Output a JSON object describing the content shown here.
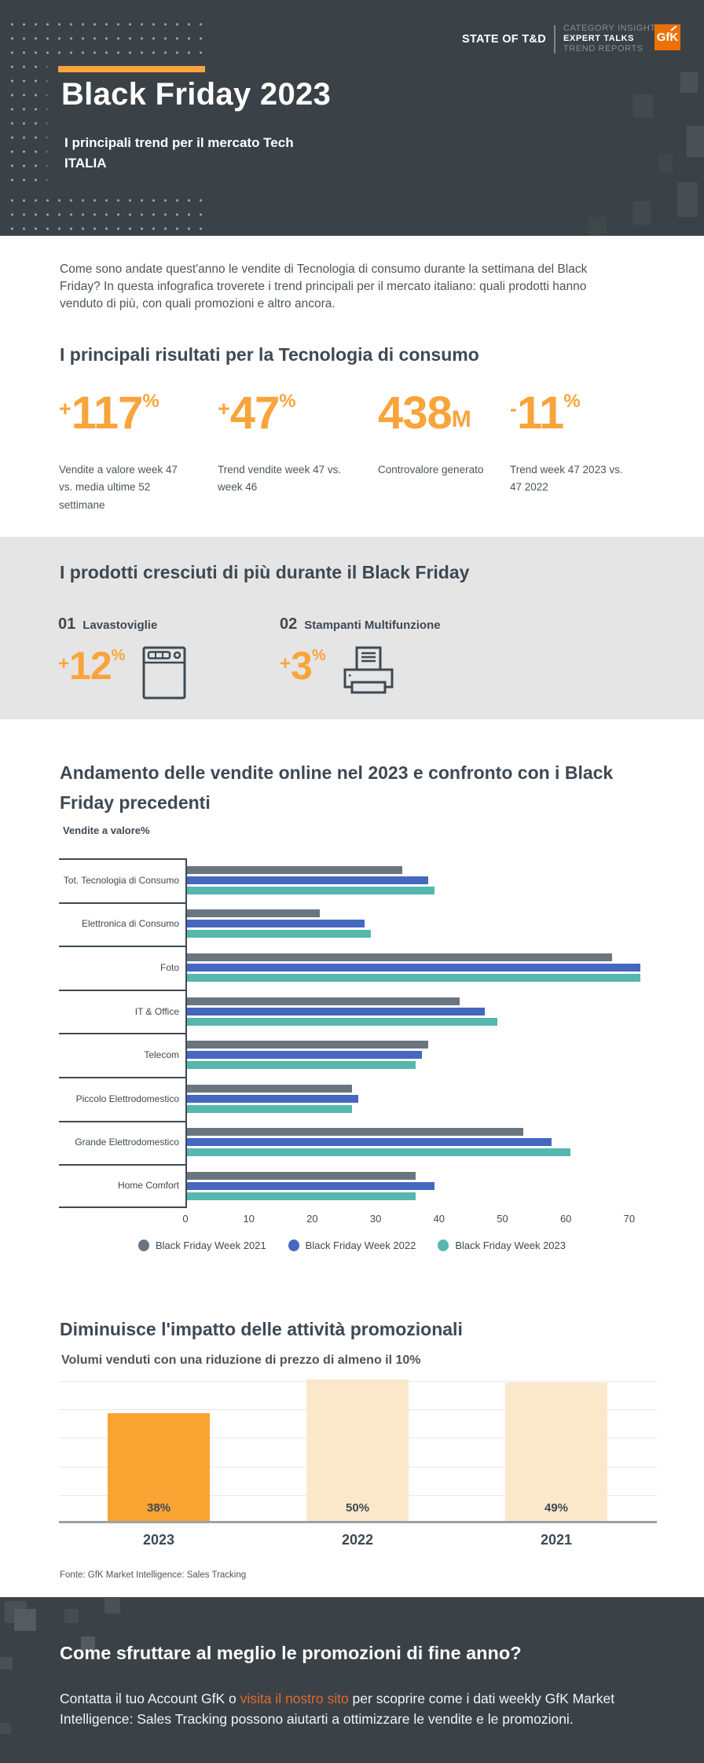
{
  "colors": {
    "accent_orange": "#F9A43B",
    "logo_orange": "#ED7005",
    "link_orange": "#E0692E",
    "dark_background": "#3B4247",
    "heading": "#3E4953",
    "gray_band": "#E5E5E5"
  },
  "header": {
    "brand_left": "STATE OF T&D",
    "brand_lines": [
      "CATEGORY INSIGHTS",
      "EXPERT TALKS",
      "TREND REPORTS"
    ],
    "logo_text": "GfK",
    "title": "Black Friday 2023",
    "subtitle_line1": "I principali trend per il mercato Tech",
    "subtitle_line2": "ITALIA"
  },
  "intro": {
    "text": "Come sono andate quest'anno le vendite di Tecnologia di consumo durante la settimana del Black Friday? In questa infografica troverete i trend principali per il mercato italiano: quali prodotti hanno venduto di più, con quali promozioni e altro ancora."
  },
  "results": {
    "title": "I principali risultati per la Tecnologia di consumo",
    "kpis": [
      {
        "sign": "+",
        "value": "117",
        "unit": "%",
        "label": "Vendite a valore week 47 vs. media ultime 52 settimane"
      },
      {
        "sign": "+",
        "value": "47",
        "unit": "%",
        "label": "Trend vendite week 47 vs. week 46"
      },
      {
        "sign": "",
        "value": "438",
        "unit": "M",
        "label": "Controvalore generato"
      },
      {
        "sign": "-",
        "value": "11",
        "unit": "%",
        "label": "Trend week 47 2023 vs. 47 2022"
      }
    ]
  },
  "top_products": {
    "title": "I prodotti cresciuti di più durante il Black Friday",
    "items": [
      {
        "rank": "01",
        "name": "Lavastoviglie",
        "sign": "+",
        "value": "12",
        "unit": "%",
        "icon": "dishwasher-icon"
      },
      {
        "rank": "02",
        "name": "Stampanti Multifunzione",
        "sign": "+",
        "value": "3",
        "unit": "%",
        "icon": "printer-icon"
      }
    ]
  },
  "chart_data": [
    {
      "type": "bar",
      "orientation": "horizontal",
      "title": "Andamento delle vendite online nel 2023 e confronto con i Black Friday precedenti",
      "axis_label": "Vendite a valore%",
      "categories": [
        "Tot. Tecnologia di Consumo",
        "Elettronica di Consumo",
        "Foto",
        "IT & Office",
        "Telecom",
        "Piccolo Elettrodomestico",
        "Grande Elettrodomestico",
        "Home Comfort"
      ],
      "series": [
        {
          "name": "Black Friday Week 2021",
          "color": "#6B7580",
          "values": [
            34,
            21,
            67,
            43,
            38,
            26,
            53,
            36
          ]
        },
        {
          "name": "Black Friday Week 2022",
          "color": "#4567C0",
          "values": [
            38,
            28,
            71.5,
            47,
            37,
            27,
            57.5,
            39
          ]
        },
        {
          "name": "Black Friday Week 2023",
          "color": "#55B7AE",
          "values": [
            39,
            29,
            71.5,
            49,
            36,
            26,
            60.5,
            36
          ]
        }
      ],
      "xlim": [
        0,
        70
      ],
      "x_ticks": [
        0,
        10,
        20,
        30,
        40,
        50,
        60,
        70
      ],
      "grid": false,
      "legend_position": "bottom"
    },
    {
      "type": "bar",
      "orientation": "vertical",
      "title": "Diminuisce l'impatto delle attività promozionali",
      "subtitle": "Volumi venduti con una riduzione di prezzo di almeno il 10%",
      "categories": [
        "2023",
        "2022",
        "2021"
      ],
      "values": [
        38,
        50,
        49
      ],
      "labels": [
        "38%",
        "50%",
        "49%"
      ],
      "colors": [
        "#F9A333",
        "#FBE8CA",
        "#FBE8CA"
      ],
      "ylim": [
        0,
        50
      ],
      "grid": true,
      "source": "Fonte: GfK Market Intelligence: Sales Tracking"
    }
  ],
  "footer": {
    "title": "Come sfruttare al meglio le promozioni di fine anno?",
    "text_before_link": "Contatta il tuo Account GfK o ",
    "link_text": "visita il nostro sito",
    "text_after_link": " per scoprire come i dati weekly GfK Market Intelligence: Sales Tracking possono aiutarti a ottimizzare le vendite e le promozioni."
  }
}
